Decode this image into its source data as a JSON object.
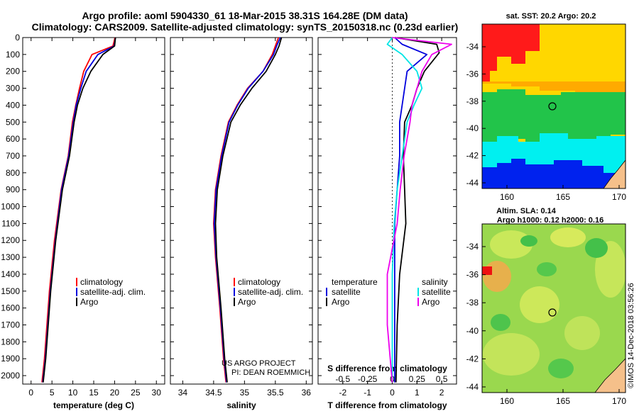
{
  "title": {
    "line1": "Argo profile: aoml 5904330_61 18-Mar-2015 38.31S 164.28E (DM data)",
    "line2": "Climatology: CARS2009. Satellite-adjusted climatology: synTS_20150318.nc (0.23d earlier)"
  },
  "colors": {
    "climatology": "#ff0000",
    "satellite": "#0000dd",
    "argo": "#000000",
    "sat_salinity": "#00e5e5",
    "argo_salinity": "#ee00ee"
  },
  "depth_ticks": [
    0,
    100,
    200,
    300,
    400,
    500,
    600,
    700,
    800,
    900,
    1000,
    1100,
    1200,
    1300,
    1400,
    1500,
    1600,
    1700,
    1800,
    1900,
    2000
  ],
  "legends": {
    "climatology": "climatology",
    "satellite_adj": "satellite-adj. clim.",
    "argo": "Argo",
    "temperature": "temperature",
    "salinity": "salinity",
    "satellite": "satellite"
  },
  "credit": {
    "line1": "US ARGO PROJECT",
    "line2": "PI: DEAN ROEMMICH"
  },
  "sst_map": {
    "title": "sat. SST: 20.2 Argo: 20.2",
    "lat_ticks": [
      "-34",
      "-36",
      "-38",
      "-40",
      "-42",
      "-44"
    ],
    "lon_ticks": [
      "160",
      "165",
      "170"
    ]
  },
  "sla_map": {
    "title1": "Altim. SLA: 0.14",
    "title2": "Argo h1000: 0.12 h2000: 0.16",
    "lat_ticks": [
      "-34",
      "-36",
      "-38",
      "-40",
      "-42",
      "-44"
    ],
    "lon_ticks": [
      "160",
      "165",
      "170"
    ]
  },
  "watermark": "©IMOS 14-Dec-2018 03:56:26",
  "chart_data": [
    {
      "type": "line",
      "xlabel": "temperature (deg C)",
      "xlim": [
        -2,
        32
      ],
      "ylim": [
        2050,
        0
      ],
      "x_ticks": [
        0,
        5,
        10,
        15,
        20,
        25,
        30
      ],
      "series": [
        {
          "name": "climatology",
          "x": [
            20.1,
            19.6,
            14.6,
            12.6,
            11.6,
            10.7,
            9.9,
            8.9,
            7.2,
            5.6,
            4.4,
            3.2,
            2.6
          ],
          "y": [
            0,
            50,
            100,
            200,
            300,
            400,
            500,
            700,
            900,
            1200,
            1500,
            1900,
            2040
          ]
        },
        {
          "name": "satellite-adj. clim.",
          "x": [
            20.2,
            19.9,
            16.0,
            13.2,
            11.9,
            10.8,
            10.1,
            9.0,
            7.3,
            5.8,
            4.6,
            3.4,
            2.8
          ],
          "y": [
            0,
            50,
            100,
            200,
            300,
            400,
            500,
            700,
            900,
            1200,
            1500,
            1900,
            2040
          ]
        },
        {
          "name": "Argo",
          "x": [
            20.2,
            20.0,
            17.2,
            14.3,
            12.4,
            11.1,
            10.3,
            9.2,
            7.5,
            5.9,
            4.7,
            3.5,
            2.9
          ],
          "y": [
            0,
            50,
            100,
            200,
            300,
            400,
            500,
            700,
            900,
            1200,
            1500,
            1900,
            2040
          ]
        }
      ]
    },
    {
      "type": "line",
      "xlabel": "salinity",
      "xlim": [
        33.8,
        36.1
      ],
      "ylim": [
        2050,
        0
      ],
      "x_ticks": [
        34,
        34.5,
        35,
        35.5,
        36
      ],
      "x_tick_labels": [
        "34",
        "34.5",
        "35",
        "35.5",
        "36"
      ],
      "series": [
        {
          "name": "climatology",
          "x": [
            35.55,
            35.5,
            35.45,
            35.3,
            35.05,
            34.88,
            34.74,
            34.62,
            34.53,
            34.5,
            34.53,
            34.6,
            34.66,
            34.7
          ],
          "y": [
            0,
            50,
            100,
            200,
            300,
            400,
            500,
            700,
            900,
            1100,
            1300,
            1600,
            1900,
            2040
          ]
        },
        {
          "name": "satellite-adj. clim.",
          "x": [
            35.58,
            35.52,
            35.47,
            35.3,
            35.06,
            34.89,
            34.75,
            34.63,
            34.54,
            34.51,
            34.54,
            34.61,
            34.67,
            34.71
          ],
          "y": [
            0,
            50,
            100,
            200,
            300,
            400,
            500,
            700,
            900,
            1100,
            1300,
            1600,
            1900,
            2040
          ]
        },
        {
          "name": "Argo",
          "x": [
            35.6,
            35.56,
            35.5,
            35.35,
            35.12,
            34.93,
            34.78,
            34.65,
            34.56,
            34.53,
            34.55,
            34.62,
            34.68,
            34.72
          ],
          "y": [
            0,
            50,
            100,
            200,
            300,
            400,
            500,
            700,
            900,
            1100,
            1300,
            1600,
            1900,
            2040
          ]
        }
      ]
    },
    {
      "type": "line",
      "xlabel": "T difference from climatology",
      "x2label": "S difference from climatology",
      "xlim": [
        -3,
        2.6
      ],
      "ylim": [
        2050,
        0
      ],
      "x_ticks": [
        -2,
        -1,
        0,
        1,
        2
      ],
      "x2_ticks": [
        -0.5,
        -0.25,
        0,
        0.25,
        0.5
      ],
      "x2_tick_labels": [
        "-0.5",
        "-0.25",
        "0",
        "0.25",
        "0.5"
      ],
      "series": [
        {
          "name": "temperature satellite",
          "x": [
            0.1,
            0.4,
            1.4,
            0.6,
            0.5,
            0.4,
            0.3,
            0.3,
            0.2,
            0.1,
            0.1,
            0.1,
            0.1
          ],
          "y": [
            0,
            40,
            100,
            200,
            300,
            400,
            500,
            700,
            900,
            1100,
            1400,
            1700,
            2040
          ]
        },
        {
          "name": "temperature Argo",
          "x": [
            0.1,
            1.8,
            1.9,
            1.3,
            1.0,
            0.8,
            0.5,
            0.45,
            0.5,
            0.55,
            0.3,
            0.2,
            0.15
          ],
          "y": [
            0,
            40,
            90,
            200,
            300,
            400,
            500,
            700,
            900,
            1100,
            1400,
            1700,
            2040
          ]
        },
        {
          "name": "salinity satellite",
          "x": [
            0.0,
            -0.05,
            0.1,
            0.25,
            0.3,
            0.22,
            0.15,
            0.1,
            0.05,
            0.02,
            0.0,
            0.0,
            0.0
          ],
          "y": [
            0,
            40,
            100,
            200,
            300,
            400,
            500,
            700,
            900,
            1100,
            1400,
            1700,
            2040
          ]
        },
        {
          "name": "salinity Argo",
          "x": [
            0.0,
            0.6,
            0.4,
            0.3,
            0.25,
            0.2,
            0.18,
            0.12,
            0.08,
            0.05,
            -0.05,
            -0.05,
            0.0
          ],
          "y": [
            0,
            40,
            100,
            200,
            300,
            400,
            500,
            700,
            900,
            1100,
            1400,
            1700,
            2040
          ]
        }
      ]
    }
  ]
}
